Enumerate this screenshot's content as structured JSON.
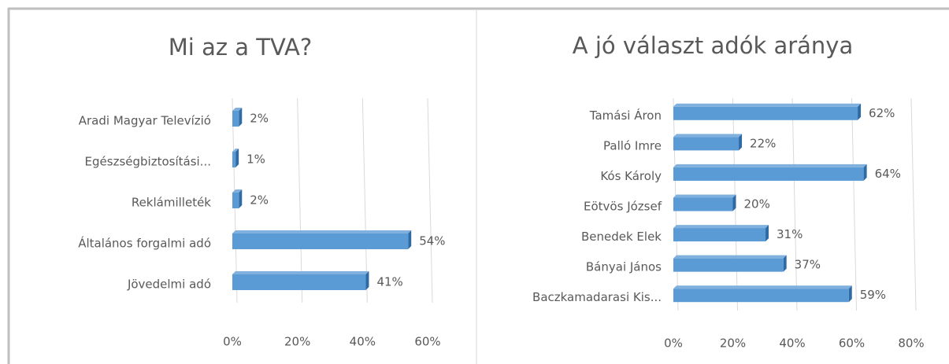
{
  "chart_data": [
    {
      "type": "bar",
      "orientation": "horizontal",
      "title": "Mi az a TVA?",
      "categories": [
        "Aradi Magyar Televízió",
        "Egészségbiztosítási...",
        "Reklámilleték",
        "Általános forgalmi adó",
        "Jövedelmi adó"
      ],
      "values": [
        2,
        1,
        2,
        54,
        41
      ],
      "value_labels": [
        "2%",
        "1%",
        "2%",
        "54%",
        "41%"
      ],
      "color": "#5b9bd5",
      "xlim": [
        0,
        60
      ],
      "xticks": [
        {
          "value": 0,
          "label": "0%"
        },
        {
          "value": 20,
          "label": "20%"
        },
        {
          "value": 40,
          "label": "40%"
        },
        {
          "value": 60,
          "label": "60%"
        }
      ],
      "grid": true
    },
    {
      "type": "bar",
      "orientation": "horizontal",
      "title": "A jó választ adók aránya",
      "categories": [
        "Tamási Áron",
        "Palló Imre",
        "Kós Károly",
        "Eötvös József",
        "Benedek Elek",
        "Bányai János",
        "Baczkamadarasi Kis..."
      ],
      "values": [
        62,
        22,
        64,
        20,
        31,
        37,
        59
      ],
      "value_labels": [
        "62%",
        "22%",
        "64%",
        "20%",
        "31%",
        "37%",
        "59%"
      ],
      "color": "#5b9bd5",
      "xlim": [
        0,
        80
      ],
      "xticks": [
        {
          "value": 0,
          "label": "0%"
        },
        {
          "value": 20,
          "label": "20%"
        },
        {
          "value": 40,
          "label": "40%"
        },
        {
          "value": 60,
          "label": "60%"
        },
        {
          "value": 80,
          "label": "80%"
        }
      ],
      "grid": true
    }
  ]
}
